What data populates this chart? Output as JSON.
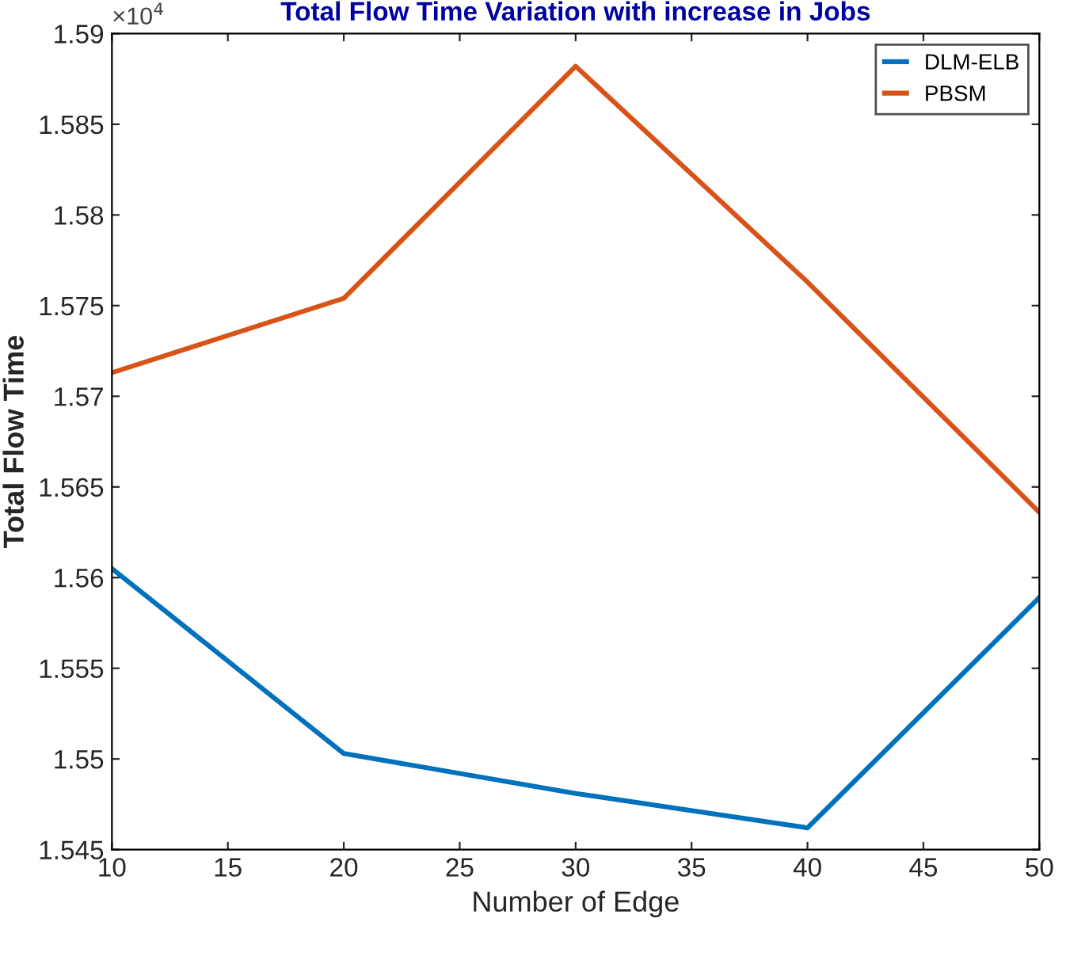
{
  "chart_data": {
    "type": "line",
    "title": "Total Flow Time Variation with increase in Jobs",
    "xlabel": "Number of Edge",
    "ylabel": "Total Flow Time",
    "annotations": [
      "×10$^{4}$"
    ],
    "x": [
      10,
      20,
      30,
      40,
      50
    ],
    "series": [
      {
        "name": "DLM-ELB",
        "color": "#0072bd",
        "values": [
          1.5605,
          1.5503,
          1.5481,
          1.5462,
          1.5589
        ]
      },
      {
        "name": "PBSM",
        "color": "#d95319",
        "values": [
          1.5713,
          1.5754,
          1.5882,
          1.5763,
          1.5636
        ]
      }
    ],
    "xlim": [
      10,
      50
    ],
    "xticks": [
      10,
      15,
      20,
      25,
      30,
      35,
      40,
      45,
      50
    ],
    "ylim": [
      1.545,
      1.59
    ],
    "yticks": [
      1.545,
      1.55,
      1.555,
      1.56,
      1.565,
      1.57,
      1.575,
      1.58,
      1.585,
      1.59
    ],
    "grid": false,
    "legend": "top right",
    "marker": "none",
    "line_style": "solid"
  }
}
